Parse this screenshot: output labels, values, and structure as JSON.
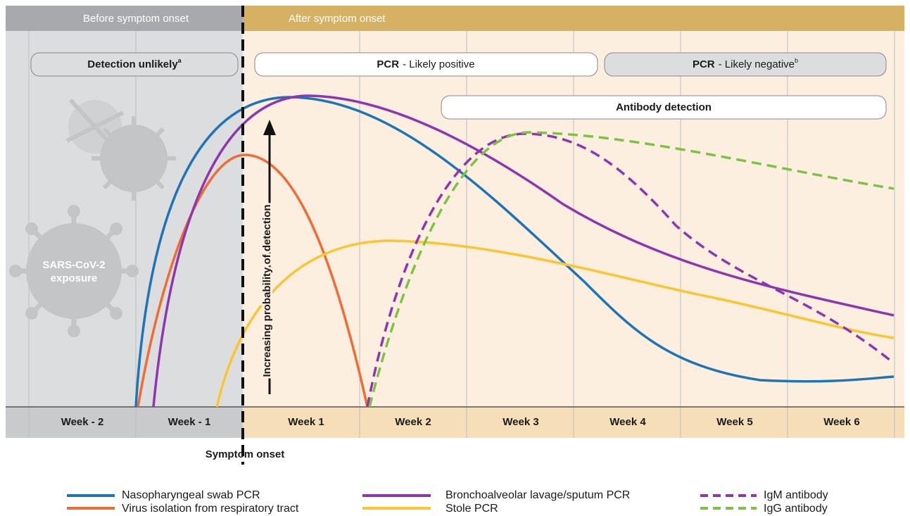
{
  "header": {
    "before": "Before symptom onset",
    "after": "After symptom onset"
  },
  "pills": [
    {
      "text": "Detection unlikely",
      "sup": "a"
    },
    {
      "bold": "PCR",
      "text": "- Likely positive"
    },
    {
      "bold": "PCR",
      "text": "- Likely negative",
      "sup": "b"
    },
    {
      "text": "Antibody detection"
    }
  ],
  "virus_label": [
    "SARS-CoV-2",
    "exposure"
  ],
  "arrow_label": "Increasing probability of detection",
  "weeks": [
    "Week - 2",
    "Week - 1",
    "Week 1",
    "Week 2",
    "Week 3",
    "Week 4",
    "Week 5",
    "Week 6"
  ],
  "onset_label": "Symptom onset",
  "legend": [
    "Nasopharyngeal swab PCR",
    "Virus isolation from respiratory tract",
    "Bronchoalveolar lavage/sputum PCR",
    "Stole PCR",
    "IgM antibody",
    "IgG antibody"
  ]
}
